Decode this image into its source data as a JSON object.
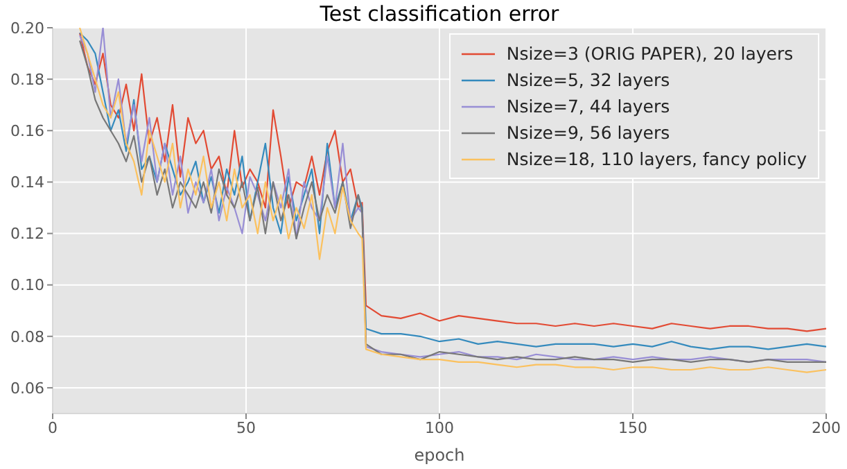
{
  "chart_data": {
    "type": "line",
    "title": "Test classification error",
    "xlabel": "epoch",
    "x": [
      7,
      9,
      11,
      13,
      15,
      17,
      19,
      21,
      23,
      25,
      27,
      29,
      31,
      33,
      35,
      37,
      39,
      41,
      43,
      45,
      47,
      49,
      51,
      53,
      55,
      57,
      59,
      61,
      63,
      65,
      67,
      69,
      71,
      73,
      75,
      77,
      79,
      80,
      81,
      85,
      90,
      95,
      100,
      105,
      110,
      115,
      120,
      125,
      130,
      135,
      140,
      145,
      150,
      155,
      160,
      165,
      170,
      175,
      180,
      185,
      190,
      195,
      200
    ],
    "series": [
      {
        "name": "Nsize=3 (ORIG PAPER), 20 layers",
        "color": "#e24a33",
        "values": [
          0.198,
          0.185,
          0.178,
          0.19,
          0.17,
          0.165,
          0.178,
          0.16,
          0.182,
          0.155,
          0.165,
          0.148,
          0.17,
          0.142,
          0.165,
          0.155,
          0.16,
          0.145,
          0.15,
          0.135,
          0.16,
          0.138,
          0.145,
          0.14,
          0.13,
          0.168,
          0.15,
          0.13,
          0.14,
          0.138,
          0.15,
          0.135,
          0.152,
          0.16,
          0.14,
          0.145,
          0.13,
          0.132,
          0.092,
          0.088,
          0.087,
          0.089,
          0.086,
          0.088,
          0.087,
          0.086,
          0.085,
          0.085,
          0.084,
          0.085,
          0.084,
          0.085,
          0.084,
          0.083,
          0.085,
          0.084,
          0.083,
          0.084,
          0.084,
          0.083,
          0.083,
          0.082,
          0.083
        ]
      },
      {
        "name": "Nsize=5, 32 layers",
        "color": "#348abd",
        "values": [
          0.198,
          0.195,
          0.19,
          0.175,
          0.16,
          0.168,
          0.152,
          0.172,
          0.145,
          0.15,
          0.14,
          0.155,
          0.145,
          0.135,
          0.14,
          0.148,
          0.132,
          0.142,
          0.128,
          0.145,
          0.135,
          0.15,
          0.125,
          0.14,
          0.155,
          0.13,
          0.12,
          0.142,
          0.125,
          0.135,
          0.145,
          0.12,
          0.155,
          0.13,
          0.14,
          0.125,
          0.135,
          0.13,
          0.083,
          0.081,
          0.081,
          0.08,
          0.078,
          0.079,
          0.077,
          0.078,
          0.077,
          0.076,
          0.077,
          0.077,
          0.077,
          0.076,
          0.077,
          0.076,
          0.078,
          0.076,
          0.075,
          0.076,
          0.076,
          0.075,
          0.076,
          0.077,
          0.076
        ]
      },
      {
        "name": "Nsize=7, 44 layers",
        "color": "#988ed5",
        "values": [
          0.197,
          0.19,
          0.175,
          0.2,
          0.165,
          0.18,
          0.155,
          0.17,
          0.148,
          0.165,
          0.14,
          0.155,
          0.135,
          0.15,
          0.128,
          0.14,
          0.132,
          0.145,
          0.125,
          0.138,
          0.13,
          0.12,
          0.142,
          0.135,
          0.125,
          0.14,
          0.13,
          0.145,
          0.118,
          0.14,
          0.13,
          0.125,
          0.15,
          0.13,
          0.155,
          0.125,
          0.13,
          0.128,
          0.076,
          0.074,
          0.073,
          0.072,
          0.073,
          0.074,
          0.072,
          0.072,
          0.071,
          0.073,
          0.072,
          0.071,
          0.071,
          0.072,
          0.071,
          0.072,
          0.071,
          0.071,
          0.072,
          0.071,
          0.07,
          0.071,
          0.071,
          0.071,
          0.07
        ]
      },
      {
        "name": "Nsize=9, 56 layers",
        "color": "#777777",
        "values": [
          0.195,
          0.185,
          0.172,
          0.165,
          0.16,
          0.155,
          0.148,
          0.158,
          0.14,
          0.15,
          0.135,
          0.145,
          0.13,
          0.14,
          0.135,
          0.13,
          0.14,
          0.128,
          0.145,
          0.135,
          0.13,
          0.14,
          0.125,
          0.138,
          0.12,
          0.14,
          0.125,
          0.135,
          0.118,
          0.13,
          0.14,
          0.125,
          0.135,
          0.128,
          0.14,
          0.122,
          0.135,
          0.128,
          0.077,
          0.073,
          0.073,
          0.071,
          0.074,
          0.073,
          0.072,
          0.071,
          0.072,
          0.071,
          0.071,
          0.072,
          0.071,
          0.071,
          0.07,
          0.071,
          0.071,
          0.07,
          0.071,
          0.071,
          0.07,
          0.071,
          0.07,
          0.07,
          0.07
        ]
      },
      {
        "name": "Nsize=18, 110 layers, fancy policy",
        "color": "#fbc15e",
        "values": [
          0.2,
          0.19,
          0.18,
          0.17,
          0.165,
          0.175,
          0.155,
          0.148,
          0.135,
          0.16,
          0.15,
          0.14,
          0.155,
          0.13,
          0.145,
          0.135,
          0.15,
          0.13,
          0.14,
          0.125,
          0.145,
          0.13,
          0.135,
          0.12,
          0.14,
          0.125,
          0.135,
          0.118,
          0.13,
          0.122,
          0.135,
          0.11,
          0.13,
          0.12,
          0.138,
          0.125,
          0.12,
          0.118,
          0.075,
          0.073,
          0.072,
          0.071,
          0.071,
          0.07,
          0.07,
          0.069,
          0.068,
          0.069,
          0.069,
          0.068,
          0.068,
          0.067,
          0.068,
          0.068,
          0.067,
          0.067,
          0.068,
          0.067,
          0.067,
          0.068,
          0.067,
          0.066,
          0.067
        ]
      }
    ],
    "xlim": [
      0,
      200
    ],
    "xticks": [
      0,
      50,
      100,
      150,
      200
    ],
    "ylim": [
      0.05,
      0.2
    ],
    "yticks": [
      {
        "value": 0.06,
        "label": "0.06"
      },
      {
        "value": 0.08,
        "label": "0.08"
      },
      {
        "value": 0.1,
        "label": "0.10"
      },
      {
        "value": 0.12,
        "label": "0.12"
      },
      {
        "value": 0.14,
        "label": "0.14"
      },
      {
        "value": 0.16,
        "label": "0.16"
      },
      {
        "value": 0.18,
        "label": "0.18"
      },
      {
        "value": 0.2,
        "label": "0.20"
      }
    ],
    "grid": true,
    "legend": "top right",
    "marker": "none",
    "line_style": "solid"
  }
}
